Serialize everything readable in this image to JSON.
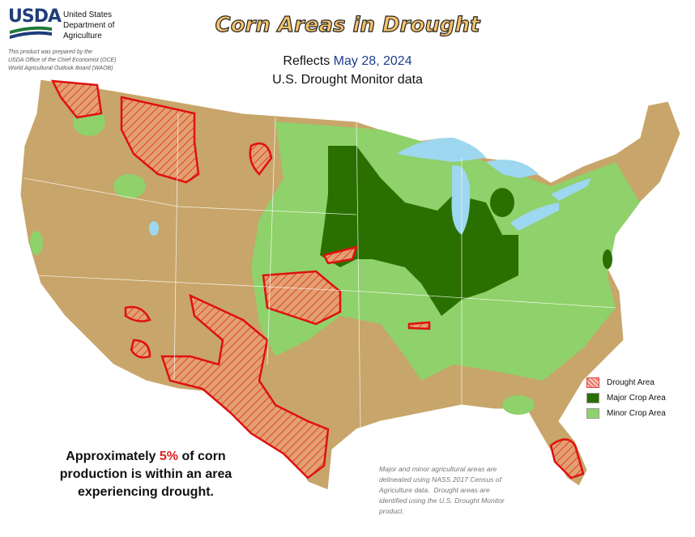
{
  "header": {
    "logo": "USDA",
    "agency_lines": [
      "United States",
      "Department of",
      "Agriculture"
    ],
    "credit_lines": [
      "This product was prepared by the",
      "USDA Office of the Chief Economist (OCE)",
      "World Agricultural Outlook Board (WAOB)"
    ]
  },
  "title": "Corn Areas in Drought",
  "subtitle": {
    "prefix": "Reflects",
    "date": "May 28, 2024",
    "source": "U.S. Drought Monitor data"
  },
  "legend": [
    {
      "label": "Drought Area"
    },
    {
      "label": "Major Crop Area"
    },
    {
      "label": "Minor Crop Area"
    }
  ],
  "summary": {
    "before": "Approximately",
    "highlight": "5%",
    "after": "of corn",
    "line2": "production is within an area",
    "line3": "experiencing drought."
  },
  "note": [
    "Major and minor agricultural areas are",
    "delineated using NASS 2017 Census of",
    "Agriculture data.  Drought areas are",
    "identified using the U.S. Drought Monitor",
    "product."
  ]
}
